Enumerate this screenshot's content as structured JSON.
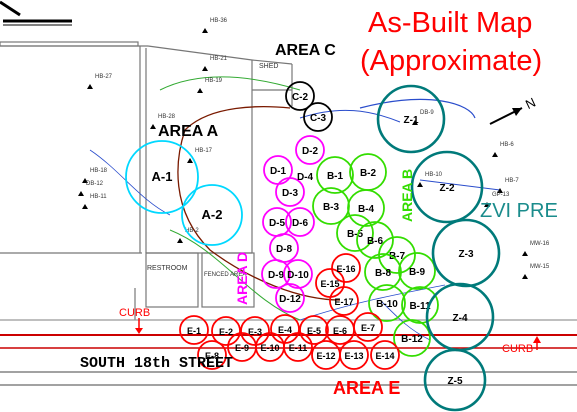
{
  "map": {
    "title_line1": "As-Built Map",
    "title_line2": "(Approximate)",
    "north_label": "N",
    "street_label": "SOUTH 18th STREET",
    "curb_left_label": "CURB",
    "curb_right_label": "CURB",
    "zvi_label": "ZVI PRE",
    "shed_label": "SHED",
    "restroom_label": "RESTROOM",
    "fenced_area_label": "FENCED AREA",
    "colors": {
      "title": "#ff0000",
      "area_e": "#ff0000",
      "area_b": "#33dd00",
      "area_d": "#ff00ff",
      "area_z": "#007a7a",
      "area_a": "#00d8ff",
      "area_c": "#000000",
      "building": "#777777",
      "street": "#cc0000",
      "utility_blue": "#2a4dcc",
      "utility_green": "#33aa33",
      "brown": "#7a1a00"
    }
  },
  "areas": {
    "a": {
      "label": "AREA A",
      "circles": [
        "A-1",
        "A-2"
      ]
    },
    "b": {
      "label": "AREA B",
      "circles": [
        "B-1",
        "B-2",
        "B-3",
        "B-4",
        "B-5",
        "B-6",
        "B-7",
        "B-8",
        "B-9",
        "B-10",
        "B-11",
        "B-12"
      ]
    },
    "c": {
      "label": "AREA C",
      "circles": [
        "C-2",
        "C-3"
      ]
    },
    "d": {
      "label": "AREA D",
      "circles": [
        "D-1",
        "D-2",
        "D-3",
        "D-4",
        "D-5",
        "D-6",
        "D-8",
        "D-9",
        "D-10",
        "D-12"
      ]
    },
    "e": {
      "label": "AREA E",
      "circles": [
        "E-1",
        "E-2",
        "E-3",
        "E-4",
        "E-5",
        "E-6",
        "E-7",
        "E-8",
        "E-9",
        "E-10",
        "E-11",
        "E-12",
        "E-13",
        "E-14",
        "E-15",
        "E-16",
        "E-17"
      ]
    },
    "z": {
      "label": "",
      "circles": [
        "Z-1",
        "Z-2",
        "Z-3",
        "Z-4",
        "Z-5"
      ]
    }
  },
  "well_labels": [
    "HB-36",
    "HB-27",
    "HB-21",
    "HB-19",
    "HB-28",
    "HB-17",
    "HB-18",
    "DB-12",
    "HB-11",
    "DB-9",
    "HB-6",
    "HB-7",
    "GP-13",
    "HB-10",
    "MW-16",
    "MW-15",
    "HB-2"
  ]
}
